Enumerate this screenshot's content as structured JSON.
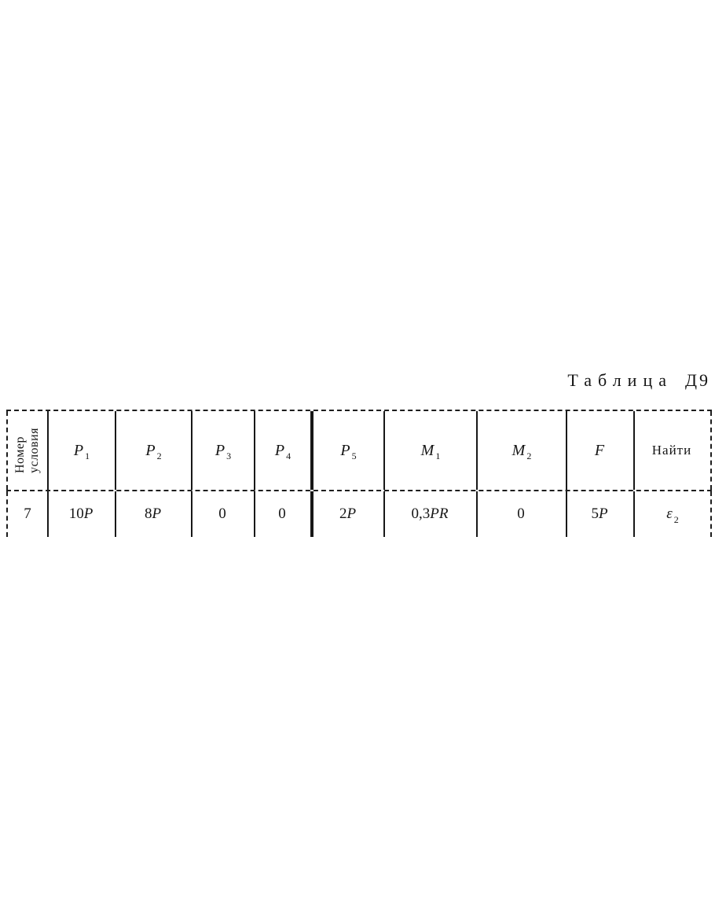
{
  "title": {
    "word": "Таблица",
    "id": "Д9"
  },
  "colors": {
    "ink": "#161616",
    "paper": "#ffffff"
  },
  "table": {
    "corner": {
      "line1": "Номер",
      "line2": "условия"
    },
    "columns": [
      {
        "sym": "P",
        "sub": "1"
      },
      {
        "sym": "P",
        "sub": "2"
      },
      {
        "sym": "P",
        "sub": "3"
      },
      {
        "sym": "P",
        "sub": "4"
      },
      {
        "sym": "P",
        "sub": "5"
      },
      {
        "sym": "M",
        "sub": "1"
      },
      {
        "sym": "M",
        "sub": "2"
      },
      {
        "sym": "F",
        "sub": ""
      },
      {
        "sym": "Найти",
        "sub": ""
      }
    ],
    "row": {
      "number": "7",
      "values": [
        {
          "pre": "10",
          "it": "P",
          "sub": ""
        },
        {
          "pre": "8",
          "it": "P",
          "sub": ""
        },
        {
          "pre": "0",
          "it": "",
          "sub": ""
        },
        {
          "pre": "0",
          "it": "",
          "sub": ""
        },
        {
          "pre": "2",
          "it": "P",
          "sub": ""
        },
        {
          "pre": "0,3",
          "it": "PR",
          "sub": ""
        },
        {
          "pre": "0",
          "it": "",
          "sub": ""
        },
        {
          "pre": "5",
          "it": "P",
          "sub": ""
        },
        {
          "pre": "",
          "it": "ε",
          "sub": "2"
        }
      ]
    }
  }
}
